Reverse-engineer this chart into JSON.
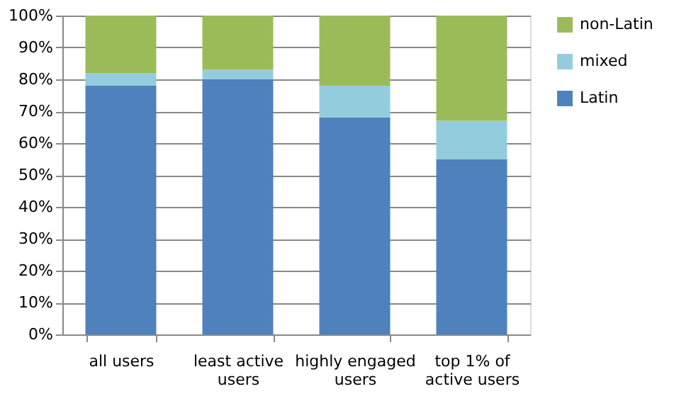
{
  "chart_data": {
    "type": "bar",
    "stacked": true,
    "categories": [
      "all users",
      "least active users",
      "highly engaged users",
      "top 1% of active users"
    ],
    "series": [
      {
        "name": "Latin",
        "color": "#4f81bd",
        "values": [
          78,
          80,
          68,
          55
        ]
      },
      {
        "name": "mixed",
        "color": "#93cddd",
        "values": [
          4,
          3,
          10,
          12
        ]
      },
      {
        "name": "non-Latin",
        "color": "#9bbb59",
        "values": [
          18,
          17,
          22,
          33
        ]
      }
    ],
    "ylim": [
      0,
      100
    ],
    "yticks": [
      {
        "value": 0,
        "label": "0%"
      },
      {
        "value": 10,
        "label": "10%"
      },
      {
        "value": 20,
        "label": "20%"
      },
      {
        "value": 30,
        "label": "30%"
      },
      {
        "value": 40,
        "label": "40%"
      },
      {
        "value": 50,
        "label": "50%"
      },
      {
        "value": 60,
        "label": "60%"
      },
      {
        "value": 70,
        "label": "70%"
      },
      {
        "value": 80,
        "label": "80%"
      },
      {
        "value": 90,
        "label": "90%"
      },
      {
        "value": 100,
        "label": "100%"
      }
    ],
    "grid": "y",
    "legend": "right"
  }
}
